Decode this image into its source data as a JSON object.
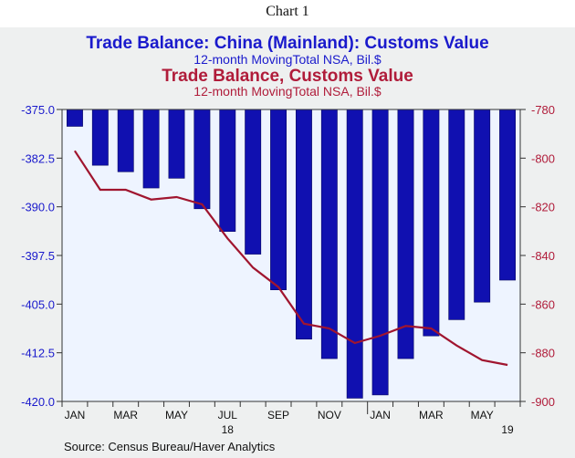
{
  "caption": "Chart 1",
  "chart_data": {
    "type": "bar",
    "titles": {
      "left_series_title": "Trade Balance: China (Mainland): Customs Value",
      "left_series_subtitle": "12-month MovingTotal    NSA, Bil.$",
      "right_series_title": "Trade Balance, Customs Value",
      "right_series_subtitle": "12-month MovingTotal    NSA, Bil.$"
    },
    "x": [
      "2018-01",
      "2018-02",
      "2018-03",
      "2018-04",
      "2018-05",
      "2018-06",
      "2018-07",
      "2018-08",
      "2018-09",
      "2018-10",
      "2018-11",
      "2018-12",
      "2019-01",
      "2019-02",
      "2019-03",
      "2019-04",
      "2019-05",
      "2019-06"
    ],
    "x_tick_labels": [
      "JAN",
      "MAR",
      "MAY",
      "JUL",
      "SEP",
      "NOV",
      "JAN",
      "MAR",
      "MAY"
    ],
    "x_tick_months": [
      "2018-01",
      "2018-03",
      "2018-05",
      "2018-07",
      "2018-09",
      "2018-11",
      "2019-01",
      "2019-03",
      "2019-05"
    ],
    "year_labels": [
      {
        "label": "18",
        "month": "2018-07"
      },
      {
        "label": "19",
        "month": "2019-06"
      }
    ],
    "series": [
      {
        "axis": "left",
        "kind": "bar",
        "color": "#1010b0",
        "values": [
          -377.6,
          -383.6,
          -384.6,
          -387.1,
          -385.6,
          -390.3,
          -393.8,
          -397.3,
          -402.8,
          -410.4,
          -413.4,
          -419.5,
          -419.0,
          -413.4,
          -409.9,
          -407.4,
          -404.7,
          -401.3
        ]
      },
      {
        "axis": "right",
        "kind": "line",
        "color": "#a0152f",
        "values": [
          -797,
          -813,
          -813,
          -817,
          -816,
          -819,
          -833,
          -845,
          -853,
          -868,
          -870,
          -876,
          -873,
          -869,
          -870,
          -877,
          -883,
          -885
        ]
      }
    ],
    "left_axis": {
      "ylim": [
        -420.0,
        -375.0
      ],
      "ticks": [
        "-375.0",
        "-382.5",
        "-390.0",
        "-397.5",
        "-405.0",
        "-412.5",
        "-420.0"
      ],
      "color": "#1a1acc"
    },
    "right_axis": {
      "ylim": [
        -900,
        -780
      ],
      "ticks": [
        "-780",
        "-800",
        "-820",
        "-840",
        "-860",
        "-880",
        "-900"
      ],
      "color": "#b01c3a"
    },
    "grid": false,
    "plot_background": "#eef4ff"
  },
  "source": "Source:  Census Bureau/Haver Analytics"
}
